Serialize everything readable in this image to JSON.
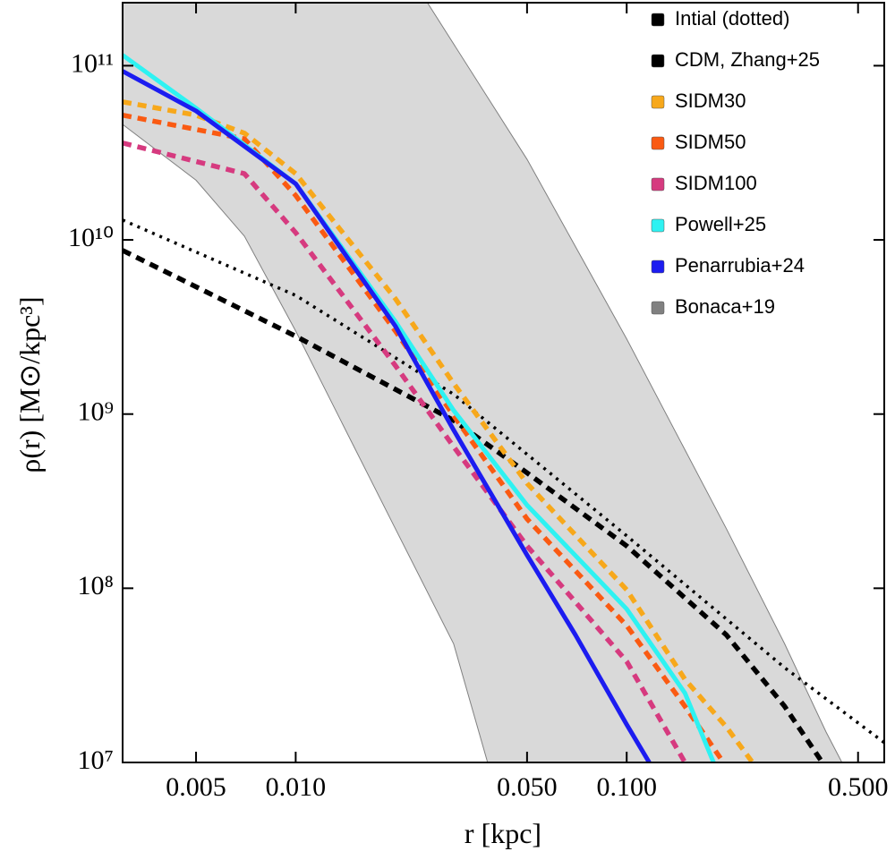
{
  "chart_data": {
    "type": "line",
    "xscale": "log",
    "yscale": "log",
    "xlabel": "r [kpc]",
    "ylabel": "ρ(r) [M⊙/kpc³]",
    "xlim": [
      0.003,
      0.6
    ],
    "ylim": [
      10000000,
      230000000000
    ],
    "xticks": [
      0.005,
      {
        "value": 0.01,
        "label": "0.010"
      },
      {
        "value": 0.05,
        "label": "0.050"
      },
      {
        "value": 0.1,
        "label": "0.100"
      },
      {
        "value": 0.5,
        "label": "0.500"
      }
    ],
    "yticks": [
      {
        "value": 10000000,
        "label": "10⁷"
      },
      {
        "value": 100000000,
        "label": "10⁸"
      },
      {
        "value": 1000000000,
        "label": "10⁹"
      },
      {
        "value": 10000000000,
        "label": "10¹⁰"
      },
      {
        "value": 100000000000,
        "label": "10¹¹"
      }
    ],
    "legend_position": "top-right",
    "series": [
      {
        "name": "Intial (dotted)",
        "color": "#000000",
        "style": "dotted",
        "x": [
          0.003,
          0.01,
          0.03,
          0.1,
          0.3,
          0.6
        ],
        "values": [
          13000000000,
          4800000000,
          1300000000,
          200000000,
          35000000,
          13000000
        ]
      },
      {
        "name": "CDM, Zhang+25",
        "color": "#000000",
        "style": "dashed",
        "x": [
          0.003,
          0.01,
          0.03,
          0.05,
          0.1,
          0.2,
          0.3,
          0.39
        ],
        "values": [
          8700000000,
          2800000000,
          920000000,
          460000000,
          175000000,
          54000000,
          21000000,
          10000000
        ]
      },
      {
        "name": "SIDM30",
        "color": "#f7a81b",
        "style": "dashed",
        "x": [
          0.003,
          0.005,
          0.007,
          0.01,
          0.02,
          0.03,
          0.05,
          0.1,
          0.15,
          0.2,
          0.24
        ],
        "values": [
          62000000000,
          52000000000,
          41000000000,
          24000000000,
          4600000000,
          1500000000,
          400000000,
          98000000,
          30000000,
          16000000,
          10000000
        ]
      },
      {
        "name": "SIDM50",
        "color": "#fa5a12",
        "style": "dashed",
        "x": [
          0.003,
          0.007,
          0.01,
          0.02,
          0.03,
          0.05,
          0.1,
          0.15,
          0.196
        ],
        "values": [
          52000000000,
          38000000000,
          18000000000,
          3000000000,
          980000000,
          250000000,
          61000000,
          21000000,
          10000000
        ]
      },
      {
        "name": "SIDM100",
        "color": "#d63a7f",
        "style": "dashed",
        "x": [
          0.003,
          0.007,
          0.01,
          0.02,
          0.03,
          0.05,
          0.1,
          0.15
        ],
        "values": [
          36000000000,
          24000000000,
          11000000000,
          1900000000,
          650000000,
          175000000,
          38000000,
          10000000
        ]
      },
      {
        "name": "Powell+25",
        "color": "#2ef2f2",
        "style": "solid",
        "x": [
          0.003,
          0.005,
          0.01,
          0.02,
          0.03,
          0.05,
          0.1,
          0.15,
          0.183
        ],
        "values": [
          115000000000,
          57000000000,
          21000000000,
          3400000000,
          1050000000,
          300000000,
          76000000,
          25000000,
          10000000
        ]
      },
      {
        "name": "Penarrubia+24",
        "color": "#1c1cf0",
        "style": "solid",
        "x": [
          0.003,
          0.005,
          0.01,
          0.02,
          0.03,
          0.05,
          0.07,
          0.1,
          0.117
        ],
        "values": [
          93000000000,
          55000000000,
          21000000000,
          3200000000,
          810000000,
          155000000,
          54000000,
          16500000,
          10000000
        ]
      }
    ],
    "band": {
      "name": "Bonaca+19",
      "color": "#808080",
      "x_lower": [
        0.003,
        0.005,
        0.007,
        0.01,
        0.015,
        0.02,
        0.03,
        0.038
      ],
      "lower": [
        46000000000,
        22000000000,
        10500000000,
        3000000000,
        650000000,
        220000000,
        48000000,
        10000000
      ],
      "x_upper": [
        0.025,
        0.05,
        0.1,
        0.2,
        0.3,
        0.4,
        0.447
      ],
      "upper": [
        230000000000,
        29000000000,
        2700000000,
        220000000,
        48000000,
        15000000,
        10000000
      ]
    }
  }
}
